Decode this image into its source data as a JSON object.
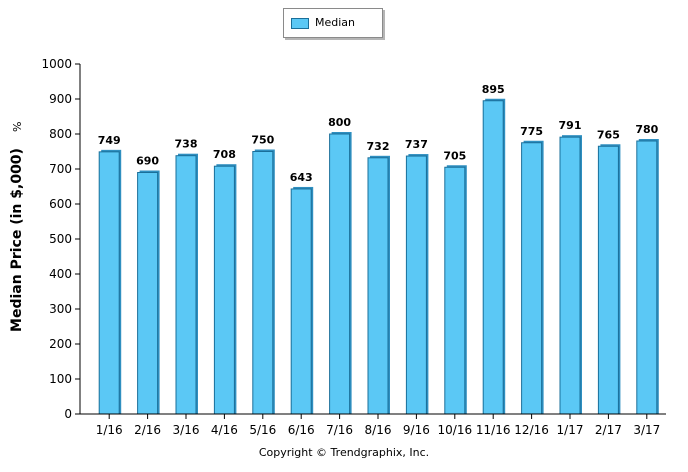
{
  "chart_data": {
    "type": "bar",
    "categories": [
      "1/16",
      "2/16",
      "3/16",
      "4/16",
      "5/16",
      "6/16",
      "7/16",
      "8/16",
      "9/16",
      "10/16",
      "11/16",
      "12/16",
      "1/17",
      "2/17",
      "3/17"
    ],
    "series": [
      {
        "name": "Median",
        "values": [
          749,
          690,
          738,
          708,
          750,
          643,
          800,
          732,
          737,
          705,
          895,
          775,
          791,
          765,
          780
        ]
      }
    ],
    "title": "",
    "xlabel": "",
    "ylabel": "Median Price (in $,000)",
    "ylabel_suffix": "%",
    "ylim": [
      0,
      1000
    ],
    "yticks": [
      0,
      100,
      200,
      300,
      400,
      500,
      600,
      700,
      800,
      900,
      1000
    ],
    "grid": false,
    "legend_position": "top-center",
    "colors": {
      "bar_fill": "#5bc8f5",
      "bar_stroke": "#1a6f9a",
      "axis": "#000000"
    }
  },
  "footer": {
    "copyright": "Copyright © Trendgraphix, Inc."
  }
}
